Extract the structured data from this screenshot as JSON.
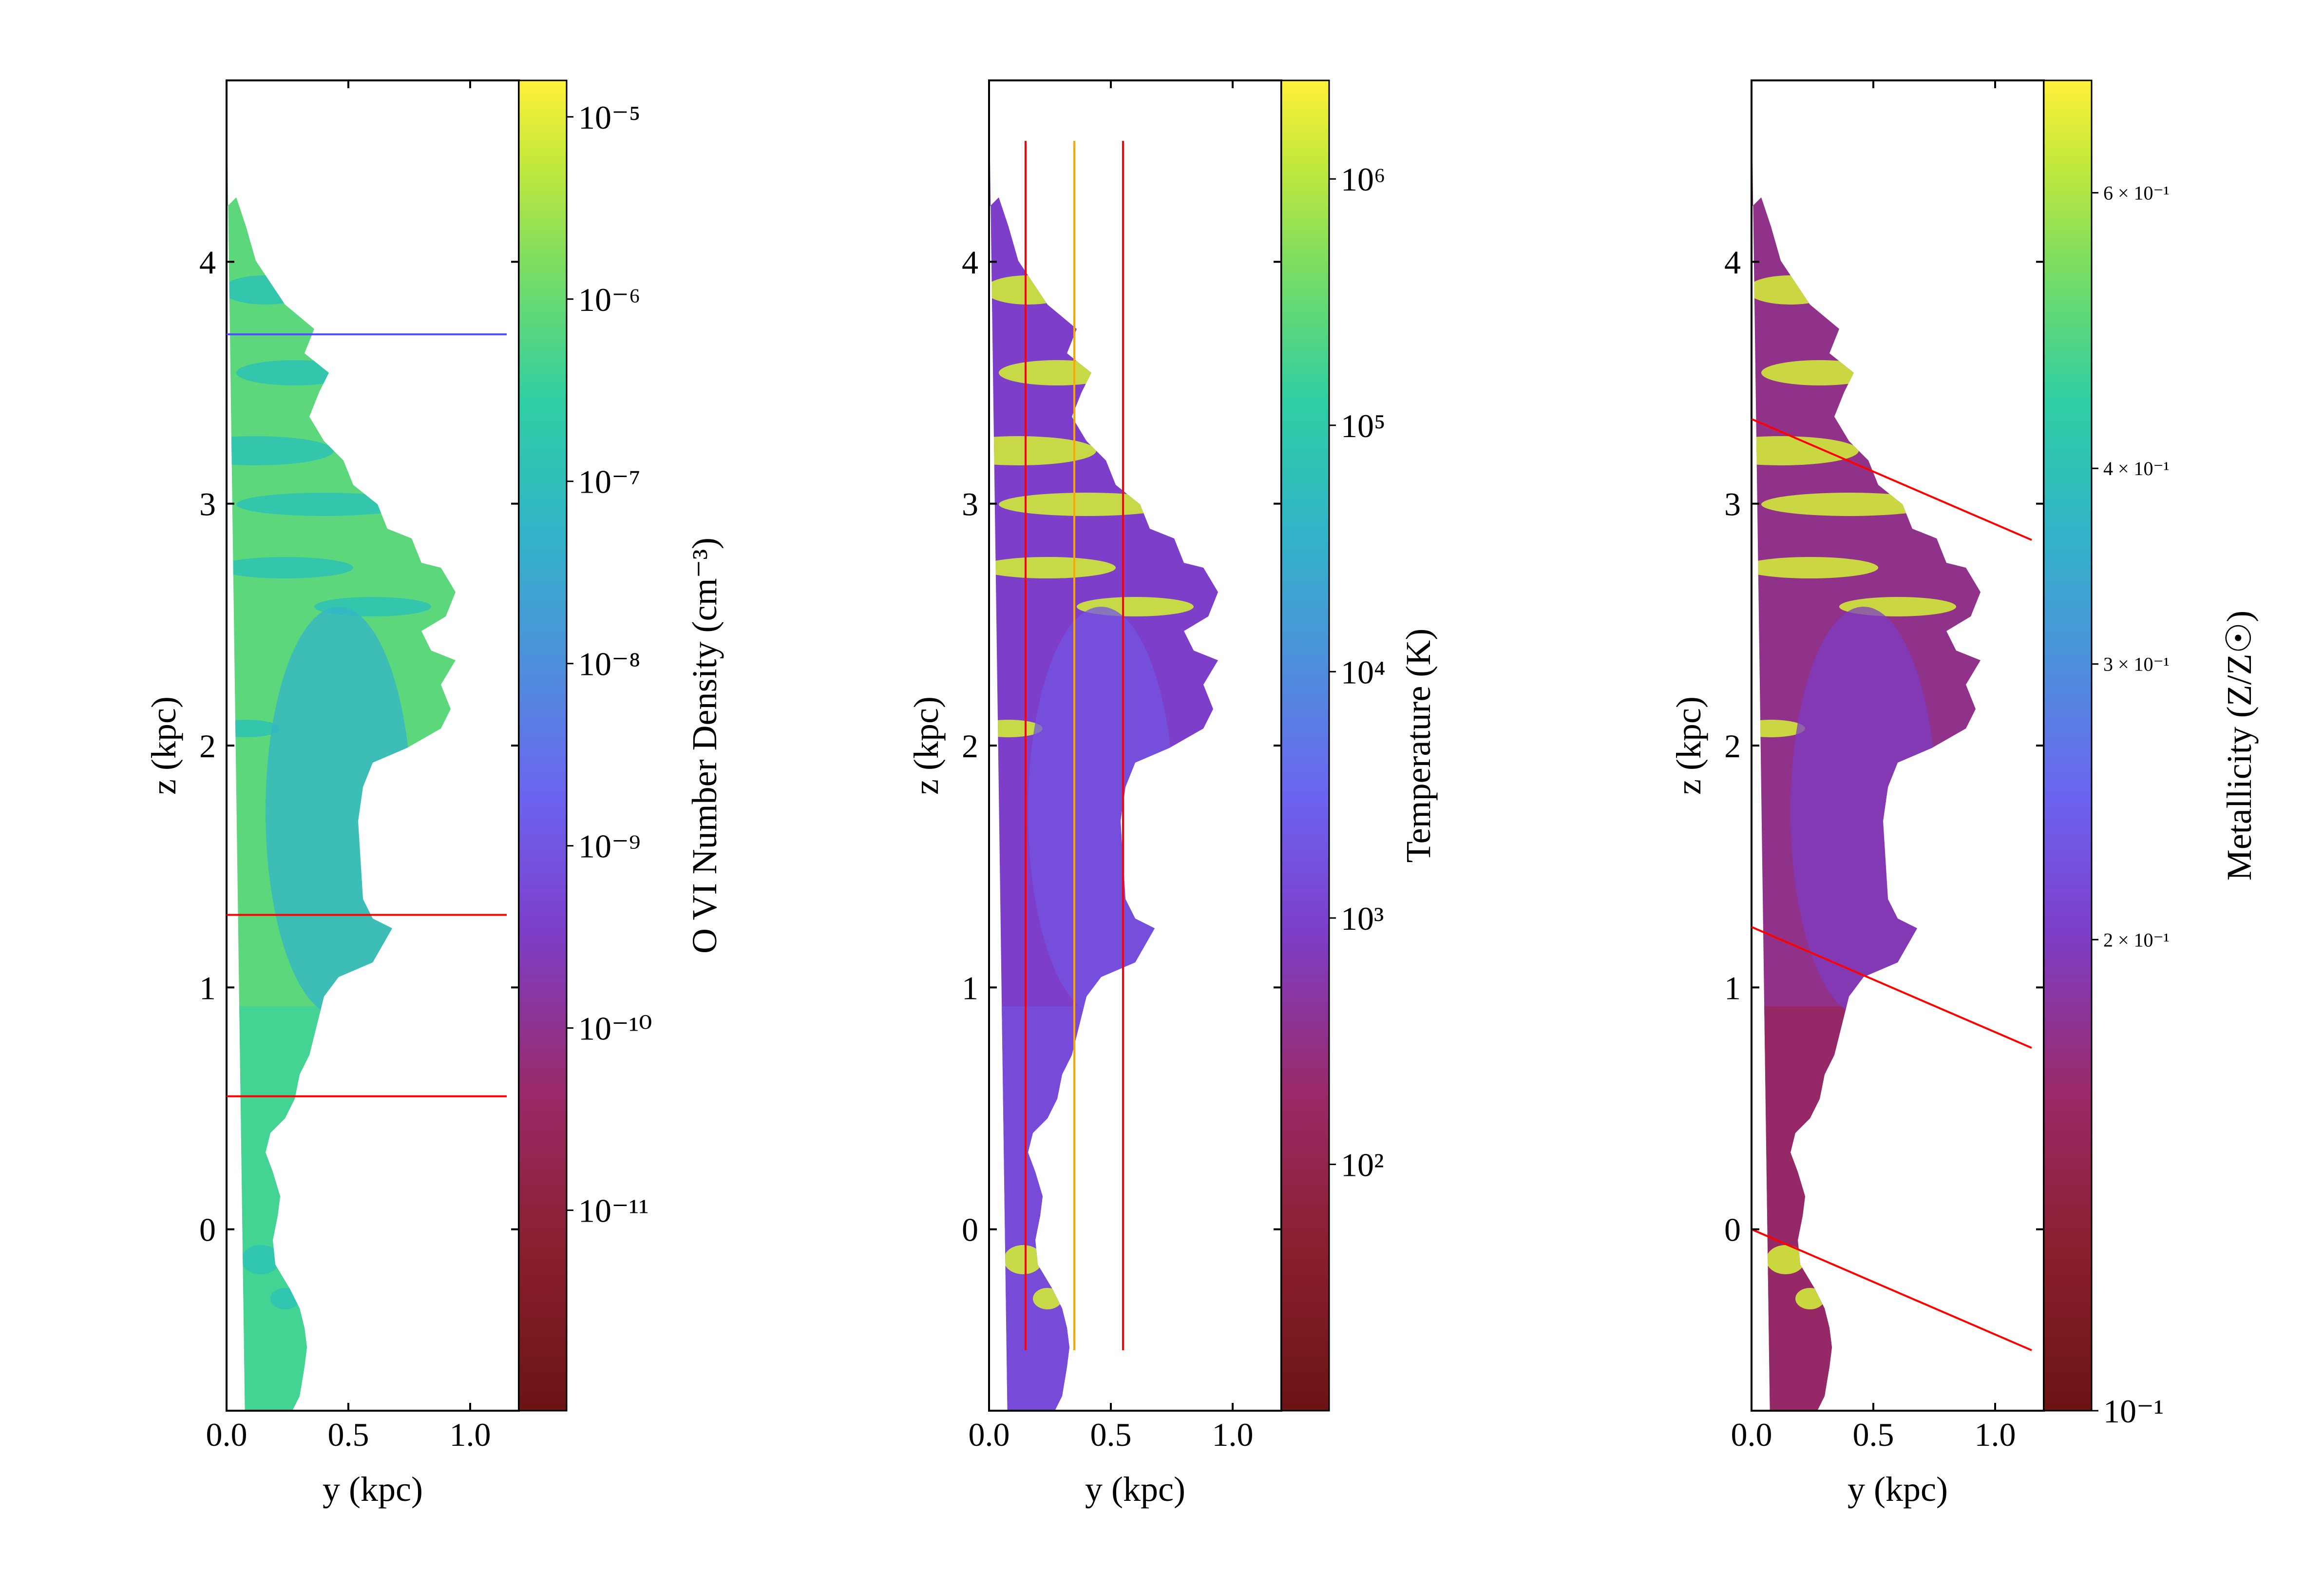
{
  "chart_data": [
    {
      "type": "heatmap",
      "xlabel": "y (kpc)",
      "ylabel": "z (kpc)",
      "xlim": [
        0.0,
        1.2
      ],
      "ylim": [
        -0.75,
        4.75
      ],
      "xticks": [
        {
          "v": 0.0,
          "label": "0.0"
        },
        {
          "v": 0.5,
          "label": "0.5"
        },
        {
          "v": 1.0,
          "label": "1.0"
        }
      ],
      "yticks": [
        {
          "v": 0,
          "label": "0"
        },
        {
          "v": 1,
          "label": "1"
        },
        {
          "v": 2,
          "label": "2"
        },
        {
          "v": 3,
          "label": "3"
        },
        {
          "v": 4,
          "label": "4"
        }
      ],
      "colorbar": {
        "label": "O VI Number Density (cm⁻³)",
        "scale": "log",
        "range_exp": [
          -12.1,
          -4.8
        ],
        "ticks": [
          {
            "exp": -5,
            "label": "10⁻⁵"
          },
          {
            "exp": -6,
            "label": "10⁻⁶"
          },
          {
            "exp": -7,
            "label": "10⁻⁷"
          },
          {
            "exp": -8,
            "label": "10⁻⁸"
          },
          {
            "exp": -9,
            "label": "10⁻⁹"
          },
          {
            "exp": -10,
            "label": "10⁻¹⁰"
          },
          {
            "exp": -11,
            "label": "10⁻¹¹"
          }
        ]
      },
      "blob_levels": [
        0.82,
        0.78,
        0.72,
        0.66
      ],
      "sightlines": [
        {
          "x": [
            0.0,
            1.15
          ],
          "y": [
            3.7,
            3.7
          ],
          "color": "#4f4fff"
        },
        {
          "x": [
            0.0,
            1.15
          ],
          "y": [
            1.3,
            1.3
          ],
          "color": "#ff0000"
        },
        {
          "x": [
            0.0,
            1.15
          ],
          "y": [
            0.55,
            0.55
          ],
          "color": "#ff0000"
        }
      ]
    },
    {
      "type": "heatmap",
      "xlabel": "y (kpc)",
      "ylabel": "z (kpc)",
      "xlim": [
        0.0,
        1.2
      ],
      "ylim": [
        -0.75,
        4.75
      ],
      "xticks": [
        {
          "v": 0.0,
          "label": "0.0"
        },
        {
          "v": 0.5,
          "label": "0.5"
        },
        {
          "v": 1.0,
          "label": "1.0"
        }
      ],
      "yticks": [
        {
          "v": 0,
          "label": "0"
        },
        {
          "v": 1,
          "label": "1"
        },
        {
          "v": 2,
          "label": "2"
        },
        {
          "v": 3,
          "label": "3"
        },
        {
          "v": 4,
          "label": "4"
        }
      ],
      "colorbar": {
        "label": "Temperature (K)",
        "scale": "log",
        "range_exp": [
          1.0,
          6.4
        ],
        "ticks": [
          {
            "exp": 2,
            "label": "10²"
          },
          {
            "exp": 3,
            "label": "10³"
          },
          {
            "exp": 4,
            "label": "10⁴"
          },
          {
            "exp": 5,
            "label": "10⁵"
          },
          {
            "exp": 6,
            "label": "10⁶"
          }
        ]
      },
      "blob_levels": [
        0.36,
        0.4,
        0.95,
        0.42
      ],
      "sightlines": [
        {
          "x": [
            0.15,
            0.15
          ],
          "y": [
            -0.5,
            4.5
          ],
          "color": "#ff0000"
        },
        {
          "x": [
            0.35,
            0.35
          ],
          "y": [
            -0.5,
            4.5
          ],
          "color": "#ffa500"
        },
        {
          "x": [
            0.55,
            0.55
          ],
          "y": [
            -0.5,
            4.5
          ],
          "color": "#ff0000"
        }
      ]
    },
    {
      "type": "heatmap",
      "xlabel": "y (kpc)",
      "ylabel": "z (kpc)",
      "xlim": [
        0.0,
        1.2
      ],
      "ylim": [
        -0.75,
        4.75
      ],
      "xticks": [
        {
          "v": 0.0,
          "label": "0.0"
        },
        {
          "v": 0.5,
          "label": "0.5"
        },
        {
          "v": 1.0,
          "label": "1.0"
        }
      ],
      "yticks": [
        {
          "v": 0,
          "label": "0"
        },
        {
          "v": 1,
          "label": "1"
        },
        {
          "v": 2,
          "label": "2"
        },
        {
          "v": 3,
          "label": "3"
        },
        {
          "v": 4,
          "label": "4"
        }
      ],
      "colorbar": {
        "label": "Metallicity (Z/Z☉)",
        "scale": "log",
        "range_exp": [
          -1.0,
          -0.15
        ],
        "ticks": [
          {
            "exp": -0.2218,
            "label": "6 × 10⁻¹"
          },
          {
            "exp": -0.3979,
            "label": "4 × 10⁻¹"
          },
          {
            "exp": -0.5229,
            "label": "3 × 10⁻¹"
          },
          {
            "exp": -0.699,
            "label": "2 × 10⁻¹"
          },
          {
            "exp": -1.0,
            "label": "10⁻¹"
          }
        ]
      },
      "blob_levels": [
        0.28,
        0.22,
        0.95,
        0.35
      ],
      "sightlines": [
        {
          "x": [
            0.0,
            1.15
          ],
          "y": [
            3.35,
            2.85
          ],
          "color": "#ff0000"
        },
        {
          "x": [
            0.0,
            1.15
          ],
          "y": [
            1.25,
            0.75
          ],
          "color": "#ff0000"
        },
        {
          "x": [
            0.0,
            1.15
          ],
          "y": [
            0.0,
            -0.5
          ],
          "color": "#ff0000"
        }
      ]
    }
  ]
}
